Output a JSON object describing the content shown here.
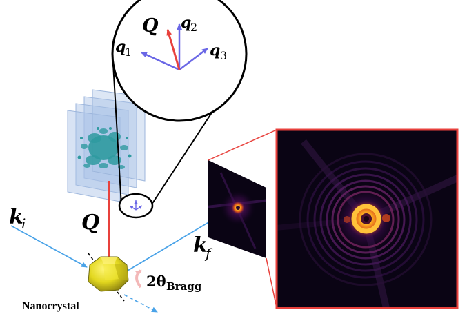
{
  "labels": {
    "Q_main": "Q",
    "Q_zoom": "Q",
    "q1_base": "q",
    "q1_sub": "1",
    "q2_base": "q",
    "q2_sub": "2",
    "q3_base": "q",
    "q3_sub": "3",
    "ki_base": "k",
    "ki_sub": "i",
    "kf_base": "k",
    "kf_sub": "f",
    "bragg_base": "2θ",
    "bragg_sub": "Bragg",
    "nanocrystal": "Nanocrystal"
  },
  "colors": {
    "beam_blue": "#4aa3e8",
    "scatter_red": "#e8413c",
    "vector_purple": "#6a67e6",
    "crystal_yellow": "#e7df2a",
    "slab_blue": "#a9c2e6",
    "density_teal": "#2f9aa0",
    "inset_border": "#e8413c",
    "pattern_bg": "#0a0414",
    "pattern_core": "#ffb020",
    "arc_pink": "#f3b8b8"
  }
}
